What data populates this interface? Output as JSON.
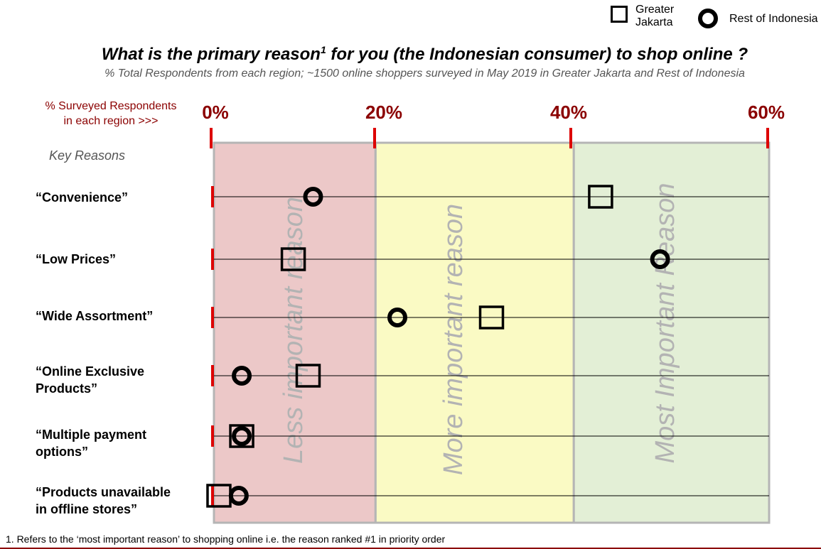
{
  "legend": {
    "square_label": "Greater Jakarta",
    "square_label_line1": "Greater",
    "square_label_line2": "Jakarta",
    "circle_label": "Rest of Indonesia"
  },
  "header": {
    "title_main": "What is the primary reason",
    "title_sup": "1",
    "title_rest": " for you (the Indonesian consumer) to shop online ?",
    "subtitle": "% Total Respondents from each region; ~1500 online shoppers surveyed in May 2019 in Greater Jakarta and Rest of Indonesia"
  },
  "axis_note": {
    "line1": "% Surveyed Respondents",
    "line2": "in each region >>>"
  },
  "key_reasons_label": "Key Reasons",
  "footnote": "1. Refers to the ‘most important reason’ to shopping online i.e. the reason ranked #1 in priority order",
  "colors": {
    "band_less": "#ecc8c8",
    "band_more": "#fafac4",
    "band_most": "#e3efd6",
    "accent": "#8b0000",
    "tick_red": "#dd0000"
  },
  "chart_data": {
    "type": "scatter",
    "title": "What is the primary reason1 for you (the Indonesian consumer) to shop online ?",
    "subtitle": "% Total Respondents from each region; ~1500 online shoppers surveyed in May 2019 in Greater Jakarta and Rest of Indonesia",
    "xlabel": "% Surveyed Respondents in each region >>>",
    "ylabel": "Key Reasons",
    "xlim": [
      0,
      56
    ],
    "x_ticks": [
      0,
      20,
      40,
      60
    ],
    "x_tick_labels": [
      "0%",
      "20%",
      "40%",
      "60%"
    ],
    "categories": [
      {
        "line1": "“Convenience”",
        "line2": ""
      },
      {
        "line1": "“Low Prices”",
        "line2": ""
      },
      {
        "line1": "“Wide Assortment”",
        "line2": ""
      },
      {
        "line1": "“Online Exclusive",
        "line2": "Products”"
      },
      {
        "line1": "“Multiple payment",
        "line2": "options”"
      },
      {
        "line1": "“Products unavailable",
        "line2": "in offline stores”"
      }
    ],
    "series": [
      {
        "name": "Greater Jakarta",
        "marker": "square",
        "values": [
          39,
          8,
          28,
          9.5,
          2.8,
          0.5
        ]
      },
      {
        "name": "Rest of Indonesia",
        "marker": "circle",
        "values": [
          10,
          45,
          18.5,
          2.8,
          2.8,
          2.5
        ]
      }
    ],
    "bands": [
      {
        "label": "Less important reason",
        "from": 0,
        "to": 16.3
      },
      {
        "label": "More important reason",
        "from": 16.3,
        "to": 36.3
      },
      {
        "label": "Most Important Reason",
        "from": 36.3,
        "to": 56
      }
    ],
    "grid": false,
    "legend_position": "top-right"
  }
}
